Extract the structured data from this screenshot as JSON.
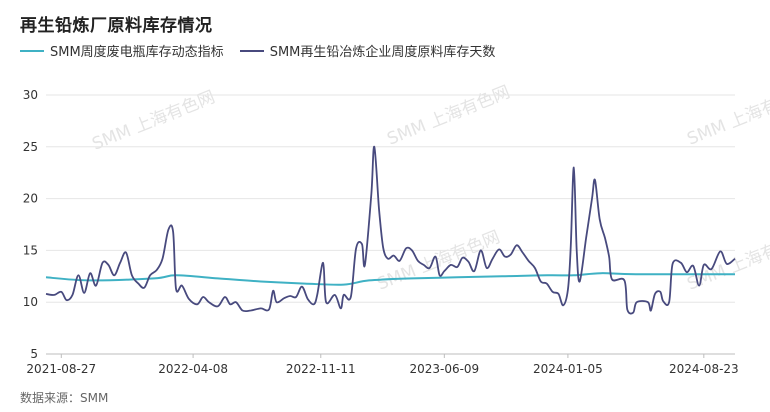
{
  "chart_data": {
    "type": "line",
    "title": "再生铅炼厂原料库存情况",
    "source": "数据来源：SMM",
    "ylim": [
      5,
      30
    ],
    "yticks": [
      5,
      10,
      15,
      20,
      25,
      30
    ],
    "xlim": [
      "2021-08-01",
      "2024-10-15"
    ],
    "xticks": [
      "2021-08-27",
      "2022-04-08",
      "2022-11-11",
      "2023-06-09",
      "2024-01-05",
      "2024-08-23"
    ],
    "grid": true,
    "legend_position": "top-left",
    "series": [
      {
        "name": "SMM周度废电瓶库存动态指标",
        "color": "#3fb1c4",
        "points": [
          [
            "2021-08-01",
            12.4
          ],
          [
            "2021-10-15",
            12.1
          ],
          [
            "2022-02-01",
            12.3
          ],
          [
            "2022-03-10",
            12.6
          ],
          [
            "2022-05-20",
            12.3
          ],
          [
            "2022-08-01",
            12.0
          ],
          [
            "2022-10-15",
            11.8
          ],
          [
            "2022-12-20",
            11.7
          ],
          [
            "2023-02-01",
            12.1
          ],
          [
            "2023-04-15",
            12.3
          ],
          [
            "2023-07-01",
            12.4
          ],
          [
            "2023-09-15",
            12.5
          ],
          [
            "2023-12-01",
            12.6
          ],
          [
            "2024-01-15",
            12.6
          ],
          [
            "2024-03-01",
            12.8
          ],
          [
            "2024-05-01",
            12.7
          ],
          [
            "2024-10-15",
            12.7
          ]
        ]
      },
      {
        "name": "SMM再生铅冶炼企业周度原料库存天数",
        "color": "#484a7e",
        "points": [
          [
            "2021-08-01",
            10.8
          ],
          [
            "2021-08-15",
            10.7
          ],
          [
            "2021-08-27",
            11.0
          ],
          [
            "2021-09-05",
            10.2
          ],
          [
            "2021-09-15",
            10.7
          ],
          [
            "2021-09-25",
            12.6
          ],
          [
            "2021-10-05",
            10.9
          ],
          [
            "2021-10-15",
            12.8
          ],
          [
            "2021-10-25",
            11.6
          ],
          [
            "2021-11-05",
            13.8
          ],
          [
            "2021-11-15",
            13.6
          ],
          [
            "2021-11-25",
            12.6
          ],
          [
            "2021-12-05",
            13.8
          ],
          [
            "2021-12-15",
            14.8
          ],
          [
            "2021-12-25",
            12.6
          ],
          [
            "2022-01-05",
            11.8
          ],
          [
            "2022-01-15",
            11.4
          ],
          [
            "2022-01-25",
            12.6
          ],
          [
            "2022-02-05",
            13.1
          ],
          [
            "2022-02-15",
            14.2
          ],
          [
            "2022-02-25",
            17.0
          ],
          [
            "2022-03-05",
            16.8
          ],
          [
            "2022-03-10",
            11.3
          ],
          [
            "2022-03-20",
            11.6
          ],
          [
            "2022-04-01",
            10.3
          ],
          [
            "2022-04-15",
            9.8
          ],
          [
            "2022-04-25",
            10.5
          ],
          [
            "2022-05-05",
            10.0
          ],
          [
            "2022-05-20",
            9.6
          ],
          [
            "2022-06-01",
            10.5
          ],
          [
            "2022-06-10",
            9.8
          ],
          [
            "2022-06-20",
            10.0
          ],
          [
            "2022-07-01",
            9.2
          ],
          [
            "2022-07-15",
            9.2
          ],
          [
            "2022-08-01",
            9.4
          ],
          [
            "2022-08-15",
            9.3
          ],
          [
            "2022-08-22",
            11.1
          ],
          [
            "2022-08-28",
            10.0
          ],
          [
            "2022-09-10",
            10.4
          ],
          [
            "2022-09-20",
            10.6
          ],
          [
            "2022-09-30",
            10.5
          ],
          [
            "2022-10-10",
            11.5
          ],
          [
            "2022-10-20",
            10.3
          ],
          [
            "2022-10-30",
            9.8
          ],
          [
            "2022-11-05",
            10.7
          ],
          [
            "2022-11-15",
            13.8
          ],
          [
            "2022-11-20",
            10.0
          ],
          [
            "2022-12-05",
            10.7
          ],
          [
            "2022-12-15",
            9.4
          ],
          [
            "2022-12-20",
            10.7
          ],
          [
            "2023-01-01",
            10.5
          ],
          [
            "2023-01-10",
            15.2
          ],
          [
            "2023-01-20",
            15.6
          ],
          [
            "2023-01-25",
            13.6
          ],
          [
            "2023-02-05",
            20.5
          ],
          [
            "2023-02-10",
            25.0
          ],
          [
            "2023-02-18",
            19.0
          ],
          [
            "2023-02-25",
            15.3
          ],
          [
            "2023-03-05",
            14.2
          ],
          [
            "2023-03-15",
            14.5
          ],
          [
            "2023-03-25",
            14.0
          ],
          [
            "2023-04-05",
            15.2
          ],
          [
            "2023-04-15",
            15.0
          ],
          [
            "2023-04-25",
            14.0
          ],
          [
            "2023-05-05",
            13.6
          ],
          [
            "2023-05-15",
            13.3
          ],
          [
            "2023-05-25",
            14.4
          ],
          [
            "2023-06-01",
            12.6
          ],
          [
            "2023-06-09",
            13.0
          ],
          [
            "2023-06-20",
            13.6
          ],
          [
            "2023-07-01",
            13.4
          ],
          [
            "2023-07-10",
            14.3
          ],
          [
            "2023-07-20",
            13.9
          ],
          [
            "2023-07-30",
            13.0
          ],
          [
            "2023-08-10",
            15.0
          ],
          [
            "2023-08-20",
            13.3
          ],
          [
            "2023-08-30",
            14.2
          ],
          [
            "2023-09-10",
            15.1
          ],
          [
            "2023-09-20",
            14.4
          ],
          [
            "2023-09-30",
            14.6
          ],
          [
            "2023-10-10",
            15.5
          ],
          [
            "2023-10-20",
            14.8
          ],
          [
            "2023-10-30",
            14.0
          ],
          [
            "2023-11-10",
            13.3
          ],
          [
            "2023-11-20",
            12.0
          ],
          [
            "2023-11-30",
            11.8
          ],
          [
            "2023-12-10",
            11.0
          ],
          [
            "2023-12-20",
            10.8
          ],
          [
            "2023-12-28",
            9.7
          ],
          [
            "2024-01-05",
            11.2
          ],
          [
            "2024-01-10",
            15.5
          ],
          [
            "2024-01-15",
            23.0
          ],
          [
            "2024-01-20",
            15.0
          ],
          [
            "2024-01-25",
            12.0
          ],
          [
            "2024-02-05",
            16.2
          ],
          [
            "2024-02-15",
            20.0
          ],
          [
            "2024-02-20",
            21.8
          ],
          [
            "2024-02-28",
            18.0
          ],
          [
            "2024-03-08",
            16.2
          ],
          [
            "2024-03-15",
            14.4
          ],
          [
            "2024-03-20",
            12.2
          ],
          [
            "2024-04-10",
            12.1
          ],
          [
            "2024-04-15",
            9.3
          ],
          [
            "2024-04-25",
            9.0
          ],
          [
            "2024-05-01",
            10.0
          ],
          [
            "2024-05-20",
            10.0
          ],
          [
            "2024-05-25",
            9.2
          ],
          [
            "2024-06-01",
            10.8
          ],
          [
            "2024-06-10",
            11.0
          ],
          [
            "2024-06-15",
            10.1
          ],
          [
            "2024-06-25",
            10.0
          ],
          [
            "2024-07-01",
            13.7
          ],
          [
            "2024-07-15",
            13.8
          ],
          [
            "2024-07-25",
            12.9
          ],
          [
            "2024-08-05",
            13.5
          ],
          [
            "2024-08-15",
            11.6
          ],
          [
            "2024-08-23",
            13.6
          ],
          [
            "2024-09-05",
            13.2
          ],
          [
            "2024-09-20",
            14.9
          ],
          [
            "2024-10-01",
            13.7
          ],
          [
            "2024-10-15",
            14.2
          ]
        ]
      }
    ],
    "watermark": "SMM 上海有色网"
  }
}
